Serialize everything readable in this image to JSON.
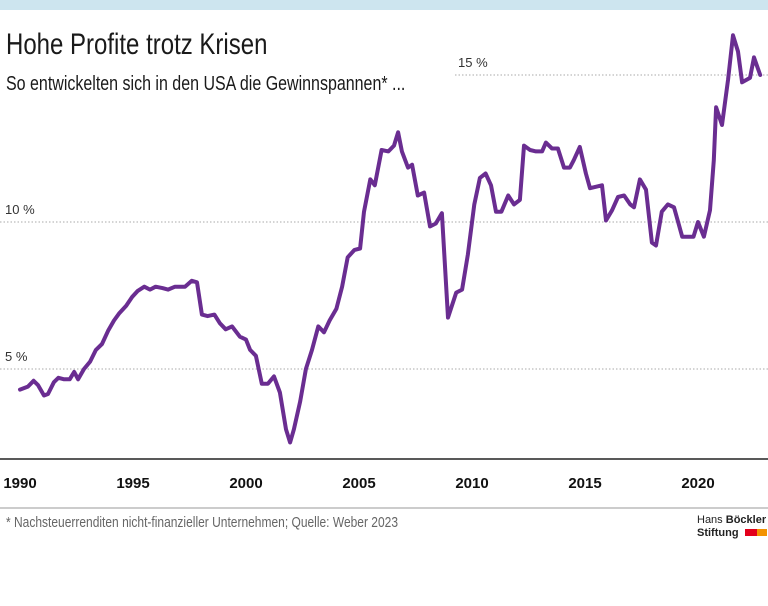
{
  "header": {
    "title": "Hohe Profite trotz Krisen",
    "subtitle": "So entwickelten sich in den USA die Gewinnspannen* ..."
  },
  "footnote": "* Nachsteuerrenditen nicht-finanzieller Unternehmen; Quelle: Weber 2023",
  "logo": {
    "line1a": "Hans ",
    "line1b": "Böckler",
    "line2": "Stiftung",
    "colors": [
      "#e3001b",
      "#f39200"
    ]
  },
  "chart_data": {
    "type": "line",
    "title": "Hohe Profite trotz Krisen",
    "xlabel": "",
    "ylabel": "",
    "xlim": [
      1990,
      2022.8
    ],
    "ylim": [
      2,
      17
    ],
    "grid": "horizontal dotted",
    "line_color": "#6a2d91",
    "y_ticks": [
      {
        "value": 5,
        "label": "5 %"
      },
      {
        "value": 10,
        "label": "10 %"
      },
      {
        "value": 15,
        "label": "15 %"
      }
    ],
    "x_ticks": [
      {
        "value": 1990,
        "label": "1990"
      },
      {
        "value": 1995,
        "label": "1995"
      },
      {
        "value": 2000,
        "label": "2000"
      },
      {
        "value": 2005,
        "label": "2005"
      },
      {
        "value": 2010,
        "label": "2010"
      },
      {
        "value": 2015,
        "label": "2015"
      },
      {
        "value": 2020,
        "label": "2020"
      }
    ],
    "x": [
      1990.0,
      1990.35,
      1990.6,
      1990.8,
      1991.06,
      1991.24,
      1991.5,
      1991.7,
      1991.95,
      1992.2,
      1992.4,
      1992.57,
      1992.83,
      1993.1,
      1993.36,
      1993.63,
      1993.9,
      1994.16,
      1994.4,
      1994.7,
      1994.96,
      1995.2,
      1995.5,
      1995.75,
      1996.0,
      1996.3,
      1996.55,
      1996.86,
      1997.3,
      1997.6,
      1997.83,
      1998.05,
      1998.3,
      1998.6,
      1998.85,
      1999.1,
      1999.38,
      1999.73,
      2000.0,
      2000.18,
      2000.44,
      2000.7,
      2000.97,
      2001.24,
      2001.5,
      2001.77,
      2001.95,
      2002.12,
      2002.4,
      2002.65,
      2002.92,
      2003.2,
      2003.45,
      2003.7,
      2004.0,
      2004.25,
      2004.5,
      2004.8,
      2005.05,
      2005.22,
      2005.5,
      2005.7,
      2006.0,
      2006.3,
      2006.55,
      2006.73,
      2006.9,
      2007.17,
      2007.35,
      2007.6,
      2007.88,
      2008.14,
      2008.4,
      2008.67,
      2008.94,
      2009.3,
      2009.56,
      2009.82,
      2010.1,
      2010.35,
      2010.6,
      2010.84,
      2011.06,
      2011.3,
      2011.6,
      2011.86,
      2012.12,
      2012.3,
      2012.57,
      2012.83,
      2013.1,
      2013.27,
      2013.54,
      2013.8,
      2014.07,
      2014.33,
      2014.5,
      2014.77,
      2015.04,
      2015.22,
      2015.5,
      2015.75,
      2015.93,
      2016.2,
      2016.46,
      2016.73,
      2017.0,
      2017.17,
      2017.43,
      2017.7,
      2017.96,
      2018.14,
      2018.4,
      2018.67,
      2018.94,
      2019.1,
      2019.3,
      2019.56,
      2019.8,
      2020.0,
      2020.26,
      2020.53,
      2020.7,
      2020.8,
      2021.06,
      2021.33,
      2021.55,
      2021.77,
      2021.95,
      2022.3,
      2022.48,
      2022.75
    ],
    "y": [
      4.3,
      4.4,
      4.6,
      4.45,
      4.1,
      4.15,
      4.55,
      4.7,
      4.65,
      4.65,
      4.9,
      4.65,
      5.0,
      5.25,
      5.65,
      5.85,
      6.3,
      6.65,
      6.9,
      7.15,
      7.45,
      7.65,
      7.8,
      7.7,
      7.8,
      7.75,
      7.7,
      7.8,
      7.8,
      8.0,
      7.95,
      6.85,
      6.8,
      6.85,
      6.55,
      6.35,
      6.45,
      6.1,
      6.0,
      5.65,
      5.45,
      4.5,
      4.5,
      4.75,
      4.2,
      2.95,
      2.5,
      2.95,
      3.9,
      5.0,
      5.65,
      6.45,
      6.25,
      6.65,
      7.05,
      7.8,
      8.8,
      9.05,
      9.1,
      10.35,
      11.45,
      11.25,
      12.45,
      12.4,
      12.6,
      13.05,
      12.4,
      11.85,
      11.95,
      10.9,
      11.0,
      9.85,
      9.95,
      10.3,
      6.75,
      7.6,
      7.7,
      8.9,
      10.6,
      11.5,
      11.65,
      11.25,
      10.35,
      10.35,
      10.9,
      10.6,
      10.75,
      12.6,
      12.45,
      12.4,
      12.4,
      12.7,
      12.5,
      12.5,
      11.85,
      11.85,
      12.1,
      12.55,
      11.65,
      11.15,
      11.2,
      11.25,
      10.05,
      10.4,
      10.85,
      10.9,
      10.6,
      10.5,
      11.45,
      11.1,
      9.3,
      9.2,
      10.35,
      10.6,
      10.5,
      10.05,
      9.5,
      9.5,
      9.5,
      10.0,
      9.5,
      10.4,
      12.1,
      13.9,
      13.3,
      14.85,
      16.35,
      15.8,
      14.75,
      14.9,
      15.6,
      15.0
    ]
  }
}
